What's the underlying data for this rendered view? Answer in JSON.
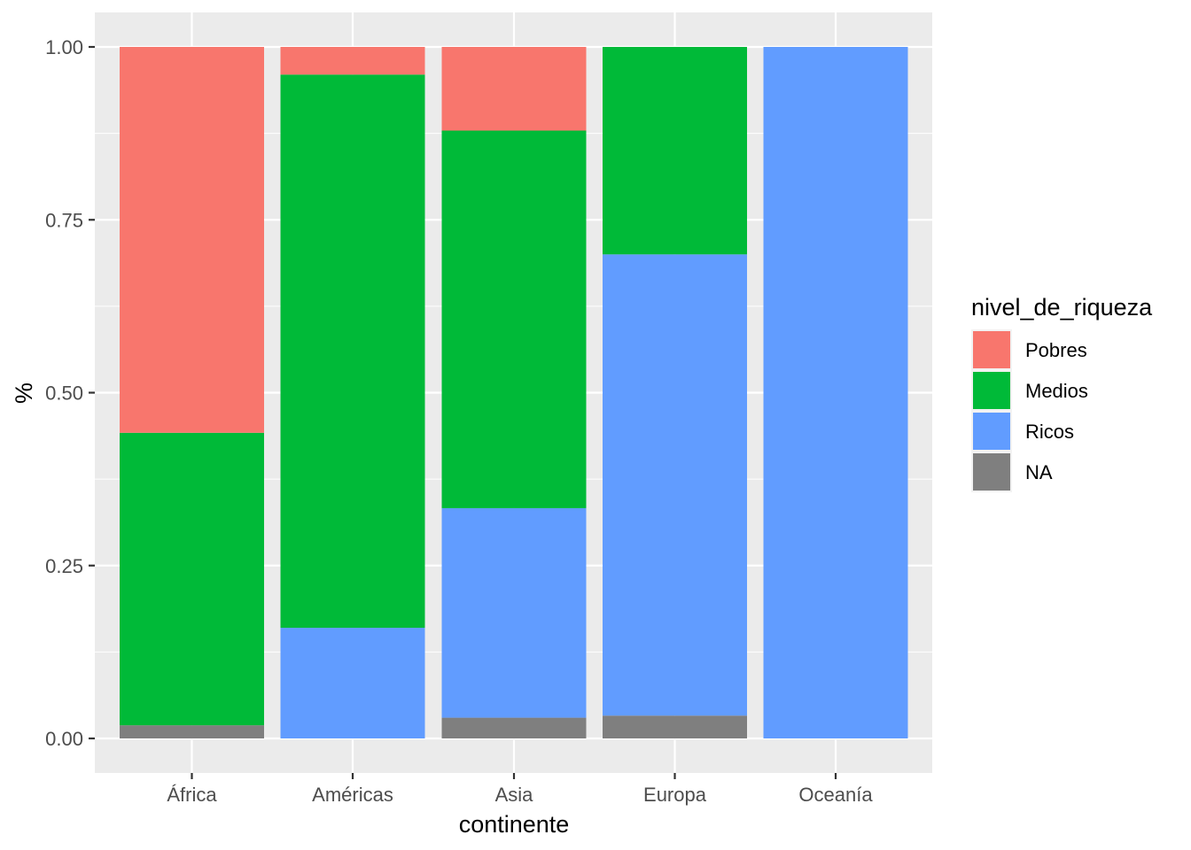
{
  "chart_data": {
    "type": "bar",
    "stacked": true,
    "normalized": true,
    "xlabel": "continente",
    "ylabel": "%",
    "ylim": [
      0,
      1
    ],
    "yticks": [
      "0.00",
      "0.25",
      "0.50",
      "0.75",
      "1.00"
    ],
    "ytick_values": [
      0,
      0.25,
      0.5,
      0.75,
      1.0
    ],
    "categories": [
      "África",
      "Américas",
      "Asia",
      "Europa",
      "Oceanía"
    ],
    "legend_title": "nivel_de_riqueza",
    "legend_position": "right",
    "grid": true,
    "stack_order_bottom_to_top": [
      "NA",
      "Ricos",
      "Medios",
      "Pobres"
    ],
    "series": [
      {
        "name": "Pobres",
        "color": "#F8766D",
        "values": [
          0.558,
          0.04,
          0.121,
          0.0,
          0.0
        ]
      },
      {
        "name": "Medios",
        "color": "#00BA38",
        "values": [
          0.423,
          0.8,
          0.546,
          0.3,
          0.0
        ]
      },
      {
        "name": "Ricos",
        "color": "#619CFF",
        "values": [
          0.0,
          0.16,
          0.303,
          0.667,
          1.0
        ]
      },
      {
        "name": "NA",
        "color": "#7F7F7F",
        "values": [
          0.019,
          0.0,
          0.03,
          0.033,
          0.0
        ]
      }
    ]
  }
}
